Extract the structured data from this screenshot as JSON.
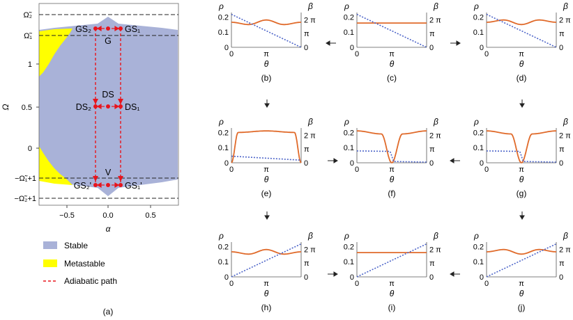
{
  "colors": {
    "stable": "#a9b2d8",
    "metastable": "#ffff00",
    "adiabatic": "#e8141c",
    "rho": "#e06a2a",
    "beta": "#4b63c8",
    "guide": "#222222"
  },
  "panel_a": {
    "caption": "(a)",
    "xlabel": "α",
    "ylabel": "Ω",
    "xticks": [
      "−0.5",
      "0.0",
      "0.5"
    ],
    "yticks": [
      "1",
      "0.5",
      "0"
    ],
    "guide_labels": [
      "Ω̃₂",
      "Ω̃₁",
      "−Ω̃₁+1",
      "−Ω̃₂+1"
    ],
    "points": {
      "G": "G",
      "GS2": "GS₂",
      "GS1": "GS₁",
      "DS": "DS",
      "DS2": "DS₂",
      "DS1": "DS₁",
      "V": "V",
      "GS2p": "GS₂'",
      "GS1p": "GS₁'"
    },
    "legend": [
      {
        "label": "Stable",
        "kind": "stable"
      },
      {
        "label": "Metastable",
        "kind": "metastable"
      },
      {
        "label": "Adiabatic path",
        "kind": "adiabatic"
      }
    ]
  },
  "profile_axes": {
    "rho_label": "ρ",
    "beta_label": "β",
    "theta_label": "θ",
    "xticks": [
      "0",
      "π"
    ],
    "rho_ticks": [
      "0.2",
      "0.1",
      "0"
    ],
    "beta_ticks": [
      "2 π",
      "π",
      "0"
    ]
  },
  "chart_data": [
    {
      "panel": "(a)",
      "type": "area",
      "title": "",
      "xlabel": "α",
      "ylabel": "Ω",
      "xlim": [
        -0.8,
        0.8
      ],
      "xticks": [
        -0.5,
        0.0,
        0.5
      ],
      "yticks": [
        0,
        0.5,
        1
      ],
      "regions": [
        "Stable",
        "Metastable"
      ],
      "path": "Adiabatic path",
      "reference_levels": [
        "Ω̃₂",
        "Ω̃₁",
        "−Ω̃₁+1",
        "−Ω̃₂+1"
      ],
      "path_points": [
        "G",
        "GS₂",
        "GS₁",
        "DS",
        "DS₂",
        "DS₁",
        "V",
        "GS₂'",
        "GS₁'"
      ]
    },
    {
      "panel": "(b)",
      "type": "line",
      "xlabel": "θ",
      "ylabel": "ρ",
      "y2label": "β",
      "series": [
        {
          "name": "ρ",
          "x": [
            0,
            1.57,
            3.14,
            4.71,
            6.28
          ],
          "values": [
            0.165,
            0.15,
            0.18,
            0.15,
            0.165
          ]
        },
        {
          "name": "β",
          "x": [
            0,
            6.28
          ],
          "values": [
            7.5,
            0
          ]
        }
      ]
    },
    {
      "panel": "(c)",
      "type": "line",
      "xlabel": "θ",
      "ylabel": "ρ",
      "y2label": "β",
      "series": [
        {
          "name": "ρ",
          "x": [
            0,
            6.28
          ],
          "values": [
            0.16,
            0.16
          ]
        },
        {
          "name": "β",
          "x": [
            0,
            6.28
          ],
          "values": [
            7.5,
            0
          ]
        }
      ]
    },
    {
      "panel": "(d)",
      "type": "line",
      "xlabel": "θ",
      "ylabel": "ρ",
      "y2label": "β",
      "series": [
        {
          "name": "ρ",
          "x": [
            0,
            1.57,
            3.14,
            4.71,
            6.28
          ],
          "values": [
            0.165,
            0.18,
            0.15,
            0.18,
            0.165
          ]
        },
        {
          "name": "β",
          "x": [
            0,
            6.28
          ],
          "values": [
            7.5,
            0
          ]
        }
      ]
    },
    {
      "panel": "(e)",
      "type": "line",
      "xlabel": "θ",
      "ylabel": "ρ",
      "y2label": "β",
      "series": [
        {
          "name": "ρ",
          "x": [
            0,
            0.6,
            3.14,
            5.68,
            6.28
          ],
          "values": [
            0.0,
            0.2,
            0.21,
            0.2,
            0.0
          ]
        },
        {
          "name": "β",
          "x": [
            0,
            6.28
          ],
          "values": [
            1.5,
            0.6
          ]
        }
      ]
    },
    {
      "panel": "(f)",
      "type": "line",
      "xlabel": "θ",
      "ylabel": "ρ",
      "y2label": "β",
      "series": [
        {
          "name": "ρ",
          "x": [
            0,
            2.2,
            3.14,
            4.1,
            6.28
          ],
          "values": [
            0.21,
            0.19,
            0.0,
            0.19,
            0.21
          ]
        },
        {
          "name": "β",
          "x": [
            0,
            3.0,
            3.3,
            6.28
          ],
          "values": [
            2.7,
            2.6,
            0.3,
            0.15
          ]
        }
      ]
    },
    {
      "panel": "(g)",
      "type": "line",
      "xlabel": "θ",
      "ylabel": "ρ",
      "y2label": "β",
      "series": [
        {
          "name": "ρ",
          "x": [
            0,
            2.2,
            3.14,
            4.1,
            6.28
          ],
          "values": [
            0.21,
            0.19,
            0.0,
            0.19,
            0.21
          ]
        },
        {
          "name": "β",
          "x": [
            0,
            3.0,
            3.3,
            6.28
          ],
          "values": [
            2.7,
            2.6,
            0.3,
            0.15
          ]
        }
      ]
    },
    {
      "panel": "(h)",
      "type": "line",
      "xlabel": "θ",
      "ylabel": "ρ",
      "y2label": "β",
      "series": [
        {
          "name": "ρ",
          "x": [
            0,
            1.57,
            3.14,
            4.71,
            6.28
          ],
          "values": [
            0.165,
            0.15,
            0.18,
            0.15,
            0.165
          ]
        },
        {
          "name": "β",
          "x": [
            0,
            6.28
          ],
          "values": [
            0,
            7.5
          ]
        }
      ]
    },
    {
      "panel": "(i)",
      "type": "line",
      "xlabel": "θ",
      "ylabel": "ρ",
      "y2label": "β",
      "series": [
        {
          "name": "ρ",
          "x": [
            0,
            6.28
          ],
          "values": [
            0.16,
            0.16
          ]
        },
        {
          "name": "β",
          "x": [
            0,
            6.28
          ],
          "values": [
            0,
            7.5
          ]
        }
      ]
    },
    {
      "panel": "(j)",
      "type": "line",
      "xlabel": "θ",
      "ylabel": "ρ",
      "y2label": "β",
      "series": [
        {
          "name": "ρ",
          "x": [
            0,
            1.57,
            3.14,
            4.71,
            6.28
          ],
          "values": [
            0.165,
            0.18,
            0.15,
            0.18,
            0.165
          ]
        },
        {
          "name": "β",
          "x": [
            0,
            6.28
          ],
          "values": [
            0,
            7.5
          ]
        }
      ]
    }
  ]
}
